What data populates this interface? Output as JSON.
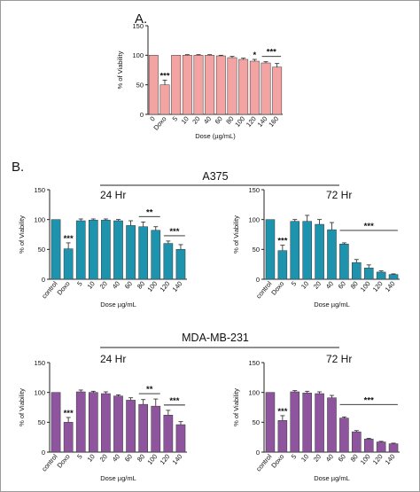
{
  "panels": {
    "A": {
      "label": "A.",
      "chart_data": {
        "type": "bar",
        "ylabel": "% of Viability",
        "xlabel": "Dose (µg/mL)",
        "ylim": [
          0,
          150
        ],
        "yticks": [
          "0",
          "50",
          "100",
          "150"
        ],
        "categories": [
          "0",
          "Doxo",
          "5",
          "10",
          "20",
          "40",
          "60",
          "80",
          "100",
          "120",
          "140",
          "160"
        ],
        "values": [
          100,
          50,
          100,
          100,
          100,
          100,
          99,
          96,
          93,
          90,
          87,
          80
        ],
        "errors": [
          0,
          8,
          0,
          1,
          1,
          1,
          1,
          2,
          2,
          3,
          2,
          6
        ],
        "color": "#f4a3a3",
        "annotations": [
          {
            "text": "***",
            "category": "Doxo"
          },
          {
            "text": "*",
            "category": "120"
          },
          {
            "text": "***",
            "from": "140",
            "to": "160"
          }
        ]
      }
    },
    "B": {
      "label": "B.",
      "charts": [
        {
          "group": "A375",
          "chart_data": {
            "type": "bar",
            "title": "24 Hr",
            "ylabel": "% of Viability",
            "xlabel": "Dose µg/mL",
            "ylim": [
              0,
              150
            ],
            "yticks": [
              "0",
              "50",
              "100",
              "150"
            ],
            "categories": [
              "control",
              "Doxo",
              "5",
              "10",
              "20",
              "40",
              "60",
              "80",
              "100",
              "120",
              "140"
            ],
            "values": [
              100,
              51,
              98,
              99,
              99,
              98,
              90,
              88,
              82,
              60,
              50
            ],
            "errors": [
              0,
              10,
              3,
              2,
              2,
              2,
              8,
              8,
              6,
              4,
              8
            ],
            "color": "#1d93ad",
            "annotations": [
              {
                "text": "***",
                "category": "Doxo"
              },
              {
                "text": "**",
                "from": "80",
                "to": "100"
              },
              {
                "text": "***",
                "from": "120",
                "to": "140"
              }
            ]
          }
        },
        {
          "group": "A375",
          "chart_data": {
            "type": "bar",
            "title": "72 Hr",
            "ylabel": "% of Viability",
            "xlabel": "Dose µg/mL",
            "ylim": [
              0,
              150
            ],
            "yticks": [
              "0",
              "50",
              "100",
              "150"
            ],
            "categories": [
              "control",
              "Doxo",
              "5",
              "10",
              "20",
              "40",
              "60",
              "80",
              "100",
              "120",
              "140"
            ],
            "values": [
              100,
              48,
              97,
              97,
              92,
              83,
              59,
              28,
              19,
              12,
              8
            ],
            "errors": [
              0,
              9,
              3,
              10,
              8,
              12,
              2,
              5,
              5,
              2,
              1
            ],
            "color": "#1d93ad",
            "annotations": [
              {
                "text": "***",
                "category": "Doxo"
              },
              {
                "text": "***",
                "from": "60",
                "to": "140"
              }
            ]
          }
        },
        {
          "group": "MDA-MB-231",
          "chart_data": {
            "type": "bar",
            "title": "24 Hr",
            "ylabel": "% of Viability",
            "xlabel": "Dose µg/mL",
            "ylim": [
              0,
              150
            ],
            "yticks": [
              "0",
              "50",
              "100",
              "150"
            ],
            "categories": [
              "control",
              "Doxo",
              "5",
              "10",
              "20",
              "40",
              "60",
              "80",
              "100",
              "120",
              "140"
            ],
            "values": [
              100,
              50,
              101,
              100,
              98,
              94,
              87,
              80,
              77,
              62,
              46
            ],
            "errors": [
              0,
              8,
              3,
              2,
              3,
              2,
              4,
              8,
              12,
              8,
              5
            ],
            "color": "#8e559e",
            "annotations": [
              {
                "text": "***",
                "category": "Doxo"
              },
              {
                "text": "**",
                "from": "80",
                "to": "100"
              },
              {
                "text": "***",
                "from": "120",
                "to": "140"
              }
            ]
          }
        },
        {
          "group": "MDA-MB-231",
          "chart_data": {
            "type": "bar",
            "title": "72 Hr",
            "ylabel": "% of Viability",
            "xlabel": "Dose µg/mL",
            "ylim": [
              0,
              150
            ],
            "yticks": [
              "0",
              "50",
              "100",
              "150"
            ],
            "categories": [
              "control",
              "Doxo",
              "5",
              "10",
              "20",
              "40",
              "60",
              "80",
              "100",
              "120",
              "140"
            ],
            "values": [
              100,
              53,
              101,
              99,
              98,
              91,
              57,
              34,
              22,
              17,
              14
            ],
            "errors": [
              0,
              8,
              2,
              3,
              3,
              4,
              2,
              2,
              1,
              1,
              1
            ],
            "color": "#8e559e",
            "annotations": [
              {
                "text": "***",
                "category": "Doxo"
              },
              {
                "text": "***",
                "from": "60",
                "to": "140"
              }
            ]
          }
        }
      ]
    }
  },
  "groups": {
    "A375": "A375",
    "MDA": "MDA-MB-231"
  }
}
